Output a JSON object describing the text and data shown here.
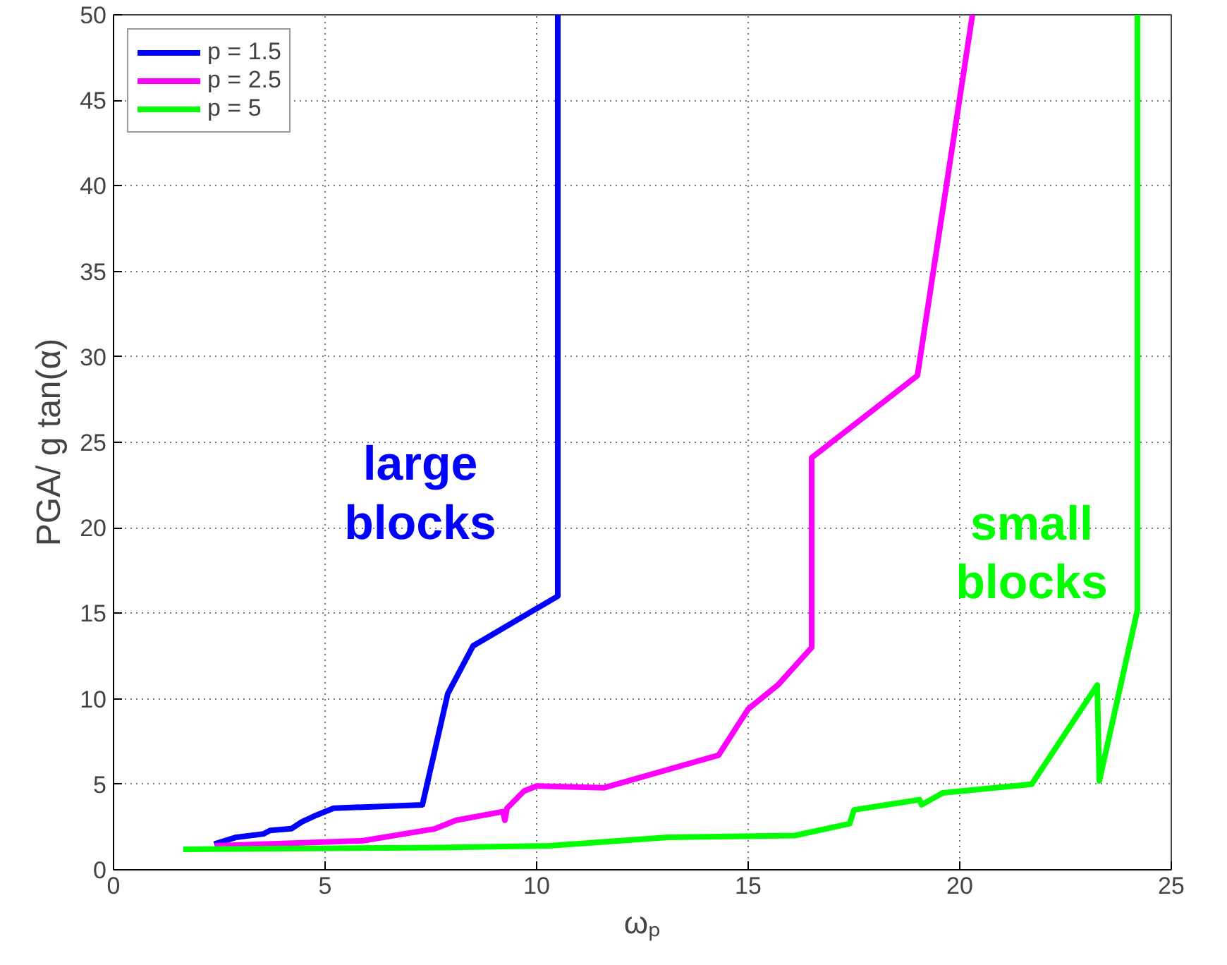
{
  "chart_data": {
    "type": "line",
    "xlabel": "ωₚ",
    "ylabel": "PGA/ g tan(α)",
    "xlim": [
      0,
      25
    ],
    "ylim": [
      0,
      50
    ],
    "xticks": [
      0,
      5,
      10,
      15,
      20,
      25
    ],
    "yticks": [
      0,
      5,
      10,
      15,
      20,
      25,
      30,
      35,
      40,
      45,
      50
    ],
    "grid": true,
    "legend": "top left",
    "line_style": "solid",
    "series": [
      {
        "name": "p = 1.5",
        "color": "#0000ff",
        "x": [
          2.38,
          2.9,
          3.55,
          3.7,
          4.2,
          4.45,
          4.8,
          5.2,
          7.3,
          7.9,
          8.5,
          10.5,
          10.5
        ],
        "values": [
          1.5,
          1.9,
          2.1,
          2.3,
          2.4,
          2.8,
          3.2,
          3.6,
          3.8,
          10.3,
          13.1,
          16.0,
          50
        ]
      },
      {
        "name": "p = 2.5",
        "color": "#ff00ff",
        "x": [
          2.4,
          5.9,
          7.6,
          8.1,
          9.2,
          9.25,
          9.3,
          9.7,
          10.0,
          11.6,
          14.3,
          15.0,
          15.7,
          16.5,
          16.5,
          19.0,
          20.3
        ],
        "values": [
          1.4,
          1.7,
          2.4,
          2.9,
          3.4,
          2.9,
          3.6,
          4.6,
          4.9,
          4.8,
          6.7,
          9.4,
          10.8,
          13.0,
          24.1,
          28.9,
          50
        ]
      },
      {
        "name": "p = 5",
        "color": "#00ff00",
        "x": [
          1.65,
          7.7,
          10.3,
          13.1,
          16.1,
          17.4,
          17.5,
          19.05,
          19.1,
          19.6,
          21.7,
          23.25,
          23.3,
          24.2,
          24.2
        ],
        "values": [
          1.2,
          1.3,
          1.4,
          1.9,
          2.0,
          2.7,
          3.5,
          4.1,
          3.8,
          4.5,
          5.0,
          10.8,
          5.2,
          15.2,
          50
        ]
      }
    ],
    "annotations": [
      "large\nblocks",
      "small\nblocks"
    ]
  }
}
